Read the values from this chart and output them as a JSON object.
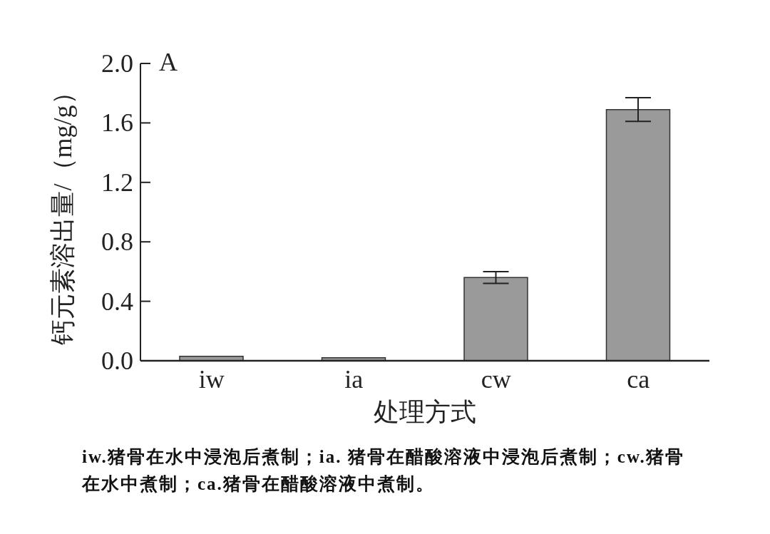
{
  "chart_data": {
    "type": "bar",
    "ylabel": "钙元素溶出量/（mg/g）",
    "xlabel": "处理方式",
    "categories": [
      "iw",
      "ia",
      "cw",
      "ca"
    ],
    "values": [
      0.03,
      0.02,
      0.56,
      1.69
    ],
    "errors": [
      null,
      null,
      0.04,
      0.08
    ],
    "color": "#9a9a9a",
    "ylim": [
      0,
      2
    ],
    "yticks": [
      {
        "value": 0,
        "label": "0.0"
      },
      0.4,
      0.8,
      1.2,
      1.6,
      {
        "value": 2,
        "label": "2.0"
      }
    ],
    "annotations": [
      "A",
      "iw.猪骨在水中浸泡后煮制；ia. 猪骨在醋酸溶液中浸泡后煮制；cw.猪骨在水中煮制；ca.猪骨在醋酸溶液中煮制。"
    ]
  }
}
